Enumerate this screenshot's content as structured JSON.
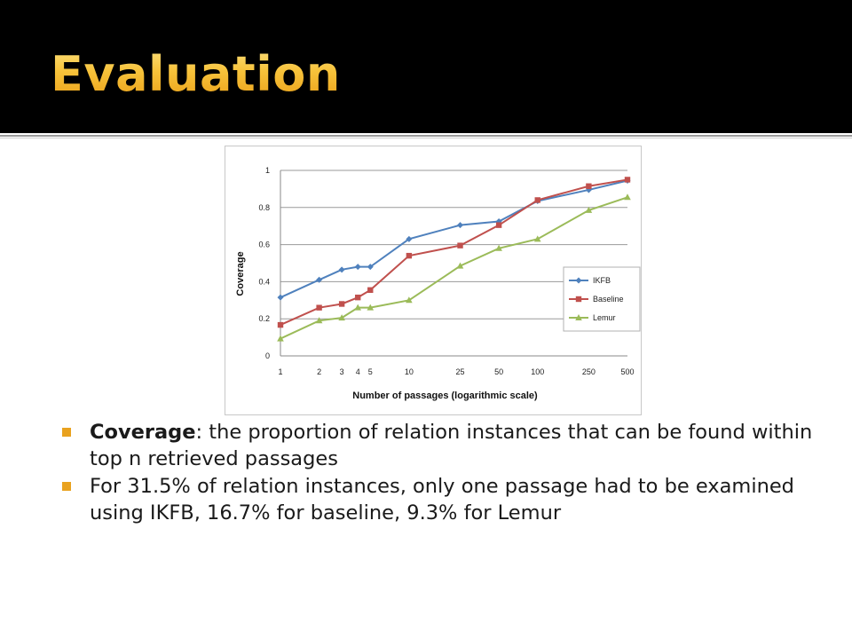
{
  "slide": {
    "title": "Evaluation",
    "title_color": "#f5b728",
    "header_bg": "#000000"
  },
  "bullets": [
    {
      "term": "Coverage",
      "text": ": the proportion of relation instances that can be found within top n retrieved passages"
    },
    {
      "term": "",
      "text": "For 31.5% of relation instances, only one passage had to be examined using IKFB, 16.7% for baseline, 9.3% for Lemur"
    }
  ],
  "bullet_color": "#e9a21f",
  "chart_data": {
    "type": "line",
    "title": "",
    "xlabel": "Number of passages (logarithmic scale)",
    "ylabel": "Coverage",
    "x_scale": "log",
    "x": [
      1,
      2,
      3,
      4,
      5,
      10,
      25,
      50,
      100,
      250,
      500
    ],
    "x_tick_labels": [
      "1",
      "2",
      "3",
      "4",
      "5",
      "10",
      "25",
      "50",
      "100",
      "250",
      "500"
    ],
    "ylim": [
      0,
      1
    ],
    "y_ticks": [
      0,
      0.2,
      0.4,
      0.6,
      0.8,
      1
    ],
    "y_tick_labels": [
      "0",
      "0.2",
      "0.4",
      "0.6",
      "0.8",
      "1"
    ],
    "grid": "horizontal",
    "legend_position": "right",
    "series": [
      {
        "name": "IKFB",
        "color": "#4f81bd",
        "marker": "diamond",
        "values": [
          0.315,
          0.41,
          0.465,
          0.48,
          0.48,
          0.63,
          0.705,
          0.725,
          0.835,
          0.895,
          0.945
        ]
      },
      {
        "name": "Baseline",
        "color": "#c0504d",
        "marker": "square",
        "values": [
          0.167,
          0.26,
          0.28,
          0.315,
          0.355,
          0.54,
          0.595,
          0.705,
          0.84,
          0.915,
          0.95
        ]
      },
      {
        "name": "Lemur",
        "color": "#9bbb59",
        "marker": "triangle",
        "values": [
          0.093,
          0.19,
          0.205,
          0.26,
          0.26,
          0.3,
          0.485,
          0.58,
          0.63,
          0.785,
          0.855
        ]
      }
    ]
  }
}
